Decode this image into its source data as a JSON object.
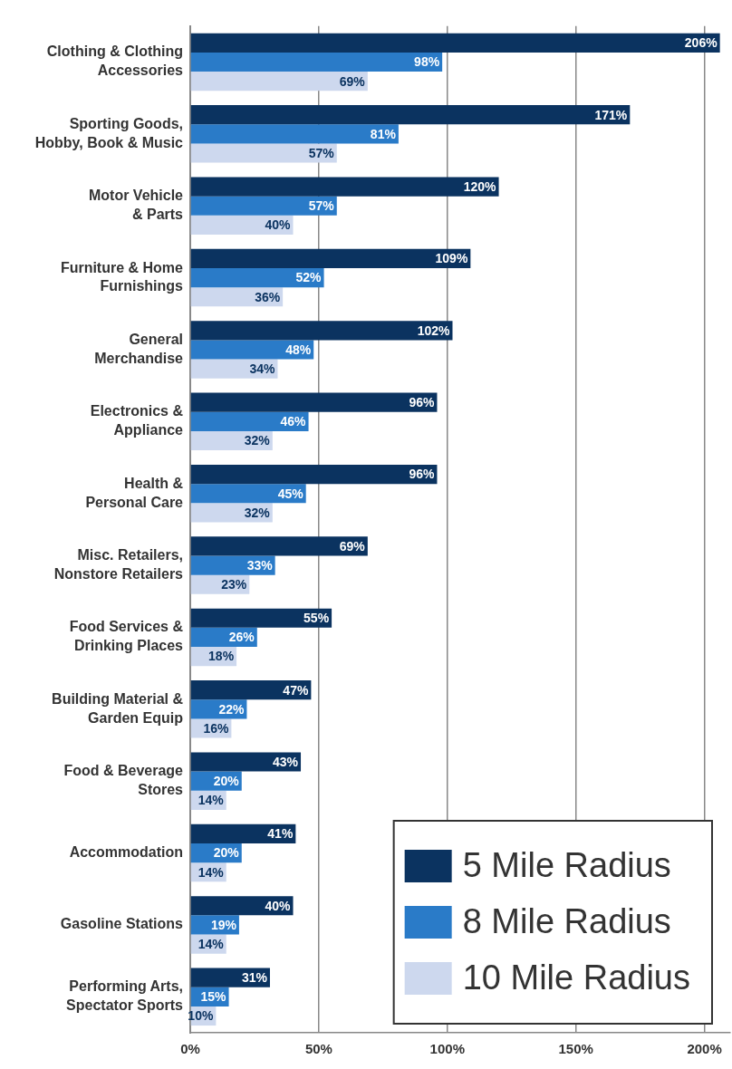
{
  "chart_data": {
    "type": "bar",
    "orientation": "horizontal",
    "categories": [
      "Clothing & Clothing\nAccessories",
      "Sporting Goods,\nHobby, Book & Music",
      "Motor Vehicle\n& Parts",
      "Furniture & Home\nFurnishings",
      "General\nMerchandise",
      "Electronics &\nAppliance",
      "Health &\nPersonal Care",
      "Misc. Retailers,\nNonstore Retailers",
      "Food Services &\nDrinking Places",
      "Building Material &\nGarden Equip",
      "Food & Beverage\nStores",
      "Accommodation",
      "Gasoline Stations",
      "Performing Arts,\nSpectator Sports"
    ],
    "series": [
      {
        "name": "5 Mile Radius",
        "color": "#0b3360",
        "values": [
          206,
          171,
          120,
          109,
          102,
          96,
          96,
          69,
          55,
          47,
          43,
          41,
          40,
          31
        ],
        "value_labels": [
          "206%",
          "171%",
          "120%",
          "109%",
          "102%",
          "96%",
          "96%",
          "69%",
          "55%",
          "47%",
          "43%",
          "41%",
          "40%",
          "31%"
        ]
      },
      {
        "name": "8 Mile Radius",
        "color": "#2a7bc8",
        "values": [
          98,
          81,
          57,
          52,
          48,
          46,
          45,
          33,
          26,
          22,
          20,
          20,
          19,
          15
        ],
        "value_labels": [
          "98%",
          "81%",
          "57%",
          "52%",
          "48%",
          "46%",
          "45%",
          "33%",
          "26%",
          "22%",
          "20%",
          "20%",
          "19%",
          "15%"
        ]
      },
      {
        "name": "10 Mile Radius",
        "color": "#cdd8ee",
        "values": [
          69,
          57,
          40,
          36,
          34,
          32,
          32,
          23,
          18,
          16,
          14,
          14,
          14,
          10
        ],
        "value_labels": [
          "69%",
          "57%",
          "40%",
          "36%",
          "34%",
          "32%",
          "32%",
          "23%",
          "18%",
          "16%",
          "14%",
          "14%",
          "14%",
          "10%"
        ]
      }
    ],
    "xlim": [
      0,
      210
    ],
    "xticks": [
      {
        "value": 0,
        "label": "0%"
      },
      {
        "value": 50,
        "label": "50%"
      },
      {
        "value": 100,
        "label": "100%"
      },
      {
        "value": 150,
        "label": "150%"
      },
      {
        "value": 200,
        "label": "200%"
      }
    ],
    "grid": "x",
    "legend": "bottom right"
  }
}
